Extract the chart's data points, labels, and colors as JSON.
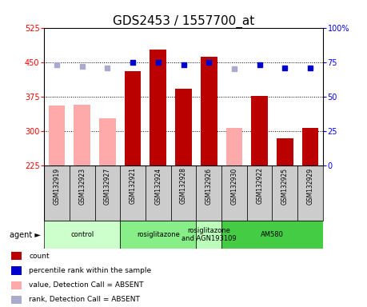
{
  "title": "GDS2453 / 1557700_at",
  "samples": [
    "GSM132919",
    "GSM132923",
    "GSM132927",
    "GSM132921",
    "GSM132924",
    "GSM132928",
    "GSM132926",
    "GSM132930",
    "GSM132922",
    "GSM132925",
    "GSM132929"
  ],
  "bar_values": [
    null,
    null,
    null,
    430,
    478,
    393,
    462,
    null,
    377,
    285,
    308
  ],
  "bar_absent_values": [
    355,
    357,
    328,
    null,
    null,
    null,
    null,
    308,
    null,
    null,
    null
  ],
  "percentile_rank": [
    73,
    72,
    71,
    75,
    75,
    73,
    75,
    70,
    73,
    71,
    71
  ],
  "percentile_absent": [
    true,
    true,
    true,
    false,
    false,
    false,
    false,
    true,
    false,
    false,
    false
  ],
  "ylim_left": [
    225,
    525
  ],
  "ylim_right": [
    0,
    100
  ],
  "yticks_left": [
    225,
    300,
    375,
    450,
    525
  ],
  "yticks_right": [
    0,
    25,
    50,
    75,
    100
  ],
  "bar_color": "#bb0000",
  "bar_absent_color": "#ffaaaa",
  "dot_color": "#0000cc",
  "dot_absent_color": "#aaaacc",
  "title_fontsize": 11,
  "agent_groups": [
    {
      "label": "control",
      "start": 0,
      "end": 3,
      "color": "#ccffcc"
    },
    {
      "label": "rosiglitazone",
      "start": 3,
      "end": 6,
      "color": "#88ee88"
    },
    {
      "label": "rosiglitazone\nand AGN193109",
      "start": 6,
      "end": 7,
      "color": "#bbffbb"
    },
    {
      "label": "AM580",
      "start": 7,
      "end": 11,
      "color": "#44cc44"
    }
  ],
  "legend_items": [
    {
      "label": "count",
      "color": "#bb0000"
    },
    {
      "label": "percentile rank within the sample",
      "color": "#0000cc"
    },
    {
      "label": "value, Detection Call = ABSENT",
      "color": "#ffaaaa"
    },
    {
      "label": "rank, Detection Call = ABSENT",
      "color": "#aaaacc"
    }
  ]
}
